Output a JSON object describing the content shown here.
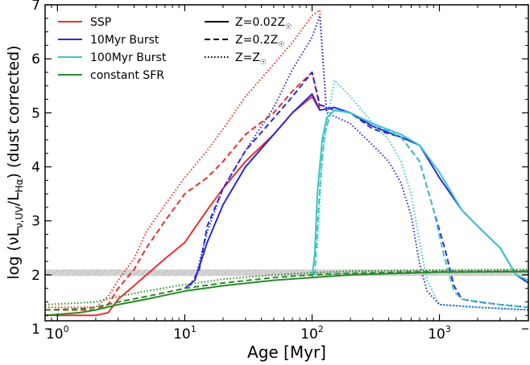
{
  "chart_data": {
    "type": "line",
    "xlabel": "Age [Myr]",
    "ylabel": "log (νL_{ν,UV}/L_{Hα}) (dust corrected)",
    "x_scale": "log",
    "xlim": [
      0.8,
      5000
    ],
    "ylim": [
      1.15,
      7.0
    ],
    "x_ticks": [
      {
        "value": 1,
        "base": "10",
        "exp": "0"
      },
      {
        "value": 10,
        "base": "10",
        "exp": "1"
      },
      {
        "value": 100,
        "base": "10",
        "exp": "2"
      },
      {
        "value": 1000,
        "base": "10",
        "exp": "3"
      }
    ],
    "y_ticks": [
      1,
      2,
      3,
      4,
      5,
      6,
      7
    ],
    "reference_band": {
      "y_low": 1.98,
      "y_high": 2.1,
      "color": "#c8c8c8",
      "hatched": true
    },
    "legend": {
      "placement": "top-left",
      "colors": [
        {
          "label": "SSP",
          "color": "#e8302a"
        },
        {
          "label": "10Myr Burst",
          "color": "#2b2bd6"
        },
        {
          "label": "100Myr Burst",
          "color": "#3cc6c6"
        },
        {
          "label": "constant SFR",
          "color": "#2a8a2a"
        }
      ],
      "styles": [
        {
          "label": "Z=0.02Z",
          "sub": "☉",
          "dash": "solid"
        },
        {
          "label": "Z=0.2Z",
          "sub": "☉",
          "dash": "dashed"
        },
        {
          "label": "Z=Z",
          "sub": "☉",
          "dash": "dotted"
        }
      ]
    },
    "series": [
      {
        "family": "SSP",
        "metallicity": "0.02",
        "color": "#e8302a",
        "dash": "solid",
        "points": [
          [
            0.8,
            1.25
          ],
          [
            2,
            1.25
          ],
          [
            2.5,
            1.3
          ],
          [
            3,
            1.55
          ],
          [
            4,
            1.8
          ],
          [
            5,
            2.0
          ],
          [
            7,
            2.3
          ],
          [
            10,
            2.6
          ],
          [
            15,
            3.2
          ],
          [
            20,
            3.6
          ],
          [
            30,
            4.1
          ],
          [
            50,
            4.6
          ],
          [
            70,
            5.0
          ],
          [
            100,
            5.3
          ],
          [
            115,
            5.05
          ]
        ]
      },
      {
        "family": "SSP",
        "metallicity": "0.2",
        "color": "#e8302a",
        "dash": "dashed",
        "points": [
          [
            0.8,
            1.35
          ],
          [
            2,
            1.35
          ],
          [
            2.5,
            1.45
          ],
          [
            3,
            1.75
          ],
          [
            4,
            2.1
          ],
          [
            5,
            2.5
          ],
          [
            7,
            3.0
          ],
          [
            10,
            3.5
          ],
          [
            15,
            3.8
          ],
          [
            20,
            4.1
          ],
          [
            30,
            4.6
          ],
          [
            50,
            5.0
          ],
          [
            70,
            5.4
          ],
          [
            100,
            5.75
          ],
          [
            115,
            5.1
          ]
        ]
      },
      {
        "family": "SSP",
        "metallicity": "1",
        "color": "#e8302a",
        "dash": "dotted",
        "points": [
          [
            0.8,
            1.4
          ],
          [
            2,
            1.4
          ],
          [
            2.5,
            1.6
          ],
          [
            3,
            1.9
          ],
          [
            4,
            2.3
          ],
          [
            5,
            2.8
          ],
          [
            7,
            3.3
          ],
          [
            10,
            3.8
          ],
          [
            15,
            4.3
          ],
          [
            20,
            4.7
          ],
          [
            30,
            5.3
          ],
          [
            50,
            5.9
          ],
          [
            70,
            6.3
          ],
          [
            100,
            6.8
          ],
          [
            115,
            6.9
          ],
          [
            130,
            5.0
          ]
        ]
      },
      {
        "family": "10Myr Burst",
        "metallicity": "0.02",
        "color": "#2b2bd6",
        "dash": "solid",
        "points": [
          [
            10,
            1.75
          ],
          [
            12,
            1.9
          ],
          [
            15,
            2.6
          ],
          [
            20,
            3.3
          ],
          [
            30,
            4.0
          ],
          [
            50,
            4.6
          ],
          [
            70,
            5.0
          ],
          [
            100,
            5.35
          ],
          [
            115,
            5.05
          ],
          [
            150,
            5.1
          ],
          [
            200,
            5.0
          ],
          [
            300,
            4.75
          ],
          [
            500,
            4.55
          ],
          [
            700,
            4.4
          ],
          [
            1000,
            3.8
          ],
          [
            1500,
            3.2
          ],
          [
            2000,
            2.9
          ],
          [
            3000,
            2.5
          ],
          [
            4000,
            2.0
          ],
          [
            5000,
            1.85
          ]
        ]
      },
      {
        "family": "10Myr Burst",
        "metallicity": "0.2",
        "color": "#2b2bd6",
        "dash": "dashed",
        "points": [
          [
            11,
            1.8
          ],
          [
            13,
            2.1
          ],
          [
            15,
            2.9
          ],
          [
            20,
            3.6
          ],
          [
            30,
            4.3
          ],
          [
            50,
            4.9
          ],
          [
            70,
            5.3
          ],
          [
            100,
            5.75
          ],
          [
            115,
            5.15
          ],
          [
            150,
            5.05
          ],
          [
            200,
            5.0
          ],
          [
            300,
            4.7
          ],
          [
            500,
            4.55
          ],
          [
            700,
            4.1
          ],
          [
            900,
            3.2
          ],
          [
            1100,
            2.5
          ],
          [
            1300,
            1.8
          ],
          [
            1500,
            1.55
          ],
          [
            2000,
            1.5
          ],
          [
            3000,
            1.45
          ],
          [
            5000,
            1.4
          ]
        ]
      },
      {
        "family": "10Myr Burst",
        "metallicity": "1",
        "color": "#2b2bd6",
        "dash": "dotted",
        "points": [
          [
            12,
            1.9
          ],
          [
            15,
            2.8
          ],
          [
            20,
            3.6
          ],
          [
            30,
            4.3
          ],
          [
            50,
            5.1
          ],
          [
            70,
            5.8
          ],
          [
            100,
            6.4
          ],
          [
            115,
            6.8
          ],
          [
            130,
            5.0
          ],
          [
            200,
            4.8
          ],
          [
            300,
            4.4
          ],
          [
            400,
            4.1
          ],
          [
            500,
            3.7
          ],
          [
            600,
            3.1
          ],
          [
            700,
            2.2
          ],
          [
            800,
            1.7
          ],
          [
            1000,
            1.45
          ],
          [
            2000,
            1.4
          ],
          [
            5000,
            1.35
          ]
        ]
      },
      {
        "family": "100Myr Burst",
        "metallicity": "0.02",
        "color": "#3cc6c6",
        "dash": "solid",
        "points": [
          [
            100,
            1.95
          ],
          [
            105,
            2.4
          ],
          [
            110,
            3.5
          ],
          [
            120,
            4.5
          ],
          [
            130,
            4.9
          ],
          [
            150,
            5.05
          ],
          [
            200,
            5.0
          ],
          [
            300,
            4.8
          ],
          [
            500,
            4.6
          ],
          [
            700,
            4.4
          ],
          [
            1000,
            3.9
          ],
          [
            1500,
            3.2
          ],
          [
            2000,
            2.9
          ],
          [
            3000,
            2.5
          ],
          [
            4000,
            2.0
          ],
          [
            5000,
            1.9
          ]
        ]
      },
      {
        "family": "100Myr Burst",
        "metallicity": "0.2",
        "color": "#3cc6c6",
        "dash": "dashed",
        "points": [
          [
            105,
            2.0
          ],
          [
            115,
            3.6
          ],
          [
            125,
            4.6
          ],
          [
            140,
            5.0
          ],
          [
            160,
            5.05
          ],
          [
            200,
            5.0
          ],
          [
            300,
            4.8
          ],
          [
            500,
            4.55
          ],
          [
            700,
            4.1
          ],
          [
            900,
            3.2
          ],
          [
            1100,
            2.3
          ],
          [
            1300,
            1.7
          ],
          [
            1500,
            1.55
          ],
          [
            3000,
            1.45
          ],
          [
            5000,
            1.4
          ]
        ]
      },
      {
        "family": "100Myr Burst",
        "metallicity": "1",
        "color": "#3cc6c6",
        "dash": "dotted",
        "points": [
          [
            110,
            2.5
          ],
          [
            120,
            4.2
          ],
          [
            135,
            5.0
          ],
          [
            150,
            5.6
          ],
          [
            200,
            5.3
          ],
          [
            300,
            4.8
          ],
          [
            400,
            4.5
          ],
          [
            500,
            4.1
          ],
          [
            600,
            3.5
          ],
          [
            700,
            2.6
          ],
          [
            800,
            1.9
          ],
          [
            1000,
            1.45
          ],
          [
            2000,
            1.4
          ],
          [
            5000,
            1.35
          ]
        ]
      },
      {
        "family": "constant SFR",
        "metallicity": "0.02",
        "color": "#2a8a2a",
        "dash": "solid",
        "points": [
          [
            0.8,
            1.25
          ],
          [
            1.5,
            1.3
          ],
          [
            2,
            1.35
          ],
          [
            3,
            1.45
          ],
          [
            5,
            1.55
          ],
          [
            10,
            1.7
          ],
          [
            20,
            1.8
          ],
          [
            50,
            1.9
          ],
          [
            100,
            1.95
          ],
          [
            200,
            2.0
          ],
          [
            500,
            2.03
          ],
          [
            1000,
            2.05
          ],
          [
            5000,
            2.06
          ]
        ]
      },
      {
        "family": "constant SFR",
        "metallicity": "0.2",
        "color": "#2a8a2a",
        "dash": "dashed",
        "points": [
          [
            0.8,
            1.35
          ],
          [
            1.5,
            1.37
          ],
          [
            2,
            1.4
          ],
          [
            3,
            1.5
          ],
          [
            5,
            1.6
          ],
          [
            10,
            1.75
          ],
          [
            20,
            1.85
          ],
          [
            50,
            1.95
          ],
          [
            100,
            2.0
          ],
          [
            200,
            2.03
          ],
          [
            500,
            2.05
          ],
          [
            1000,
            2.06
          ],
          [
            5000,
            2.07
          ]
        ]
      },
      {
        "family": "constant SFR",
        "metallicity": "1",
        "color": "#2a8a2a",
        "dash": "dotted",
        "points": [
          [
            0.8,
            1.45
          ],
          [
            1.5,
            1.48
          ],
          [
            2,
            1.5
          ],
          [
            3,
            1.6
          ],
          [
            5,
            1.7
          ],
          [
            10,
            1.82
          ],
          [
            20,
            1.92
          ],
          [
            50,
            2.0
          ],
          [
            100,
            2.04
          ],
          [
            200,
            2.07
          ],
          [
            500,
            2.08
          ],
          [
            1000,
            2.09
          ],
          [
            5000,
            2.1
          ]
        ]
      }
    ]
  }
}
